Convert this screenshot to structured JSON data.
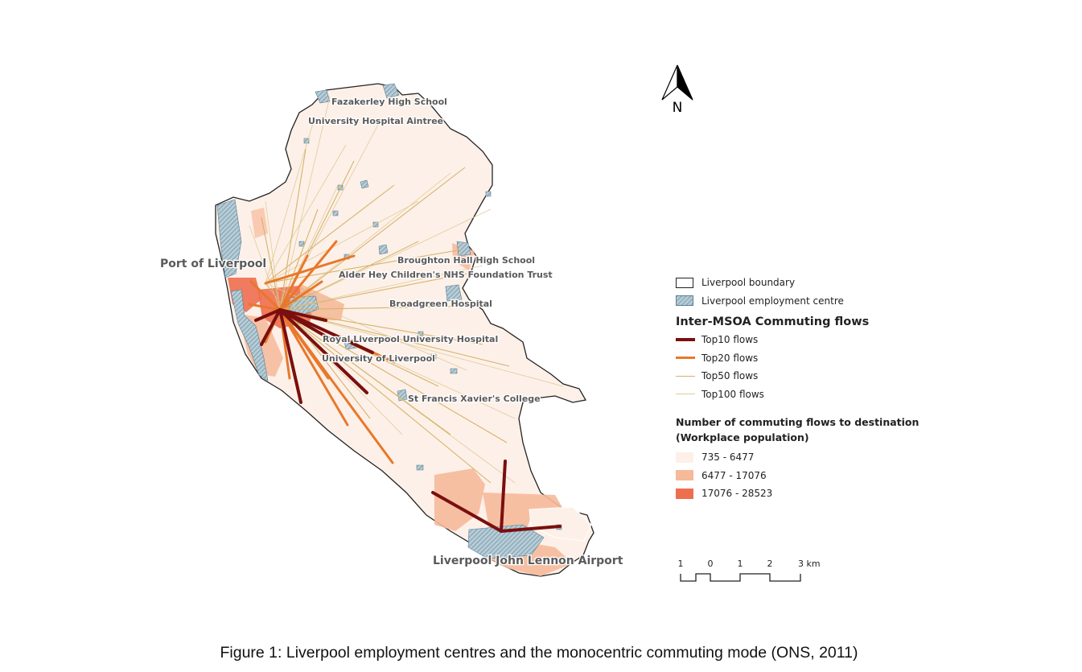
{
  "map": {
    "labels": {
      "fazakerley": "Fazakerley High School",
      "aintree": "University Hospital Aintree",
      "port": "Port of Liverpool",
      "broughton": "Broughton Hall High School",
      "alder_hey": "Alder Hey Children's NHS Foundation Trust",
      "broadgreen": "Broadgreen Hospital",
      "royal": "Royal Liverpool University Hospital",
      "university": "University of Liverpool",
      "st_francis": "St Francis Xavier's College",
      "airport": "Liverpool John Lennon Airport"
    },
    "colors": {
      "top10": "#7a0f0f",
      "top20": "#e8782a",
      "top50": "#d4b46a",
      "top100": "#e0cc98",
      "pop_low": "#fdf0e8",
      "pop_mid": "#f6b99a",
      "pop_high": "#ee6e50",
      "employment_centre": "#8fb1c2"
    }
  },
  "north_arrow": {
    "label": "N"
  },
  "legend": {
    "boundary": "Liverpool boundary",
    "employment_centre": "Liverpool employment centre",
    "flows_title": "Inter-MSOA Commuting flows",
    "flows": [
      "Top10 flows",
      "Top20 flows",
      "Top50 flows",
      "Top100 flows"
    ],
    "pop_title_line1": "Number of commuting flows to destination",
    "pop_title_line2": "(Workplace population)",
    "pop_classes": [
      "735 - 6477",
      "6477 - 17076",
      "17076 - 28523"
    ]
  },
  "scale_bar": {
    "ticks": [
      "1",
      "0",
      "1",
      "2",
      "3 km"
    ]
  },
  "caption": "Figure 1: Liverpool employment centres and the monocentric commuting mode (ONS, 2011)"
}
